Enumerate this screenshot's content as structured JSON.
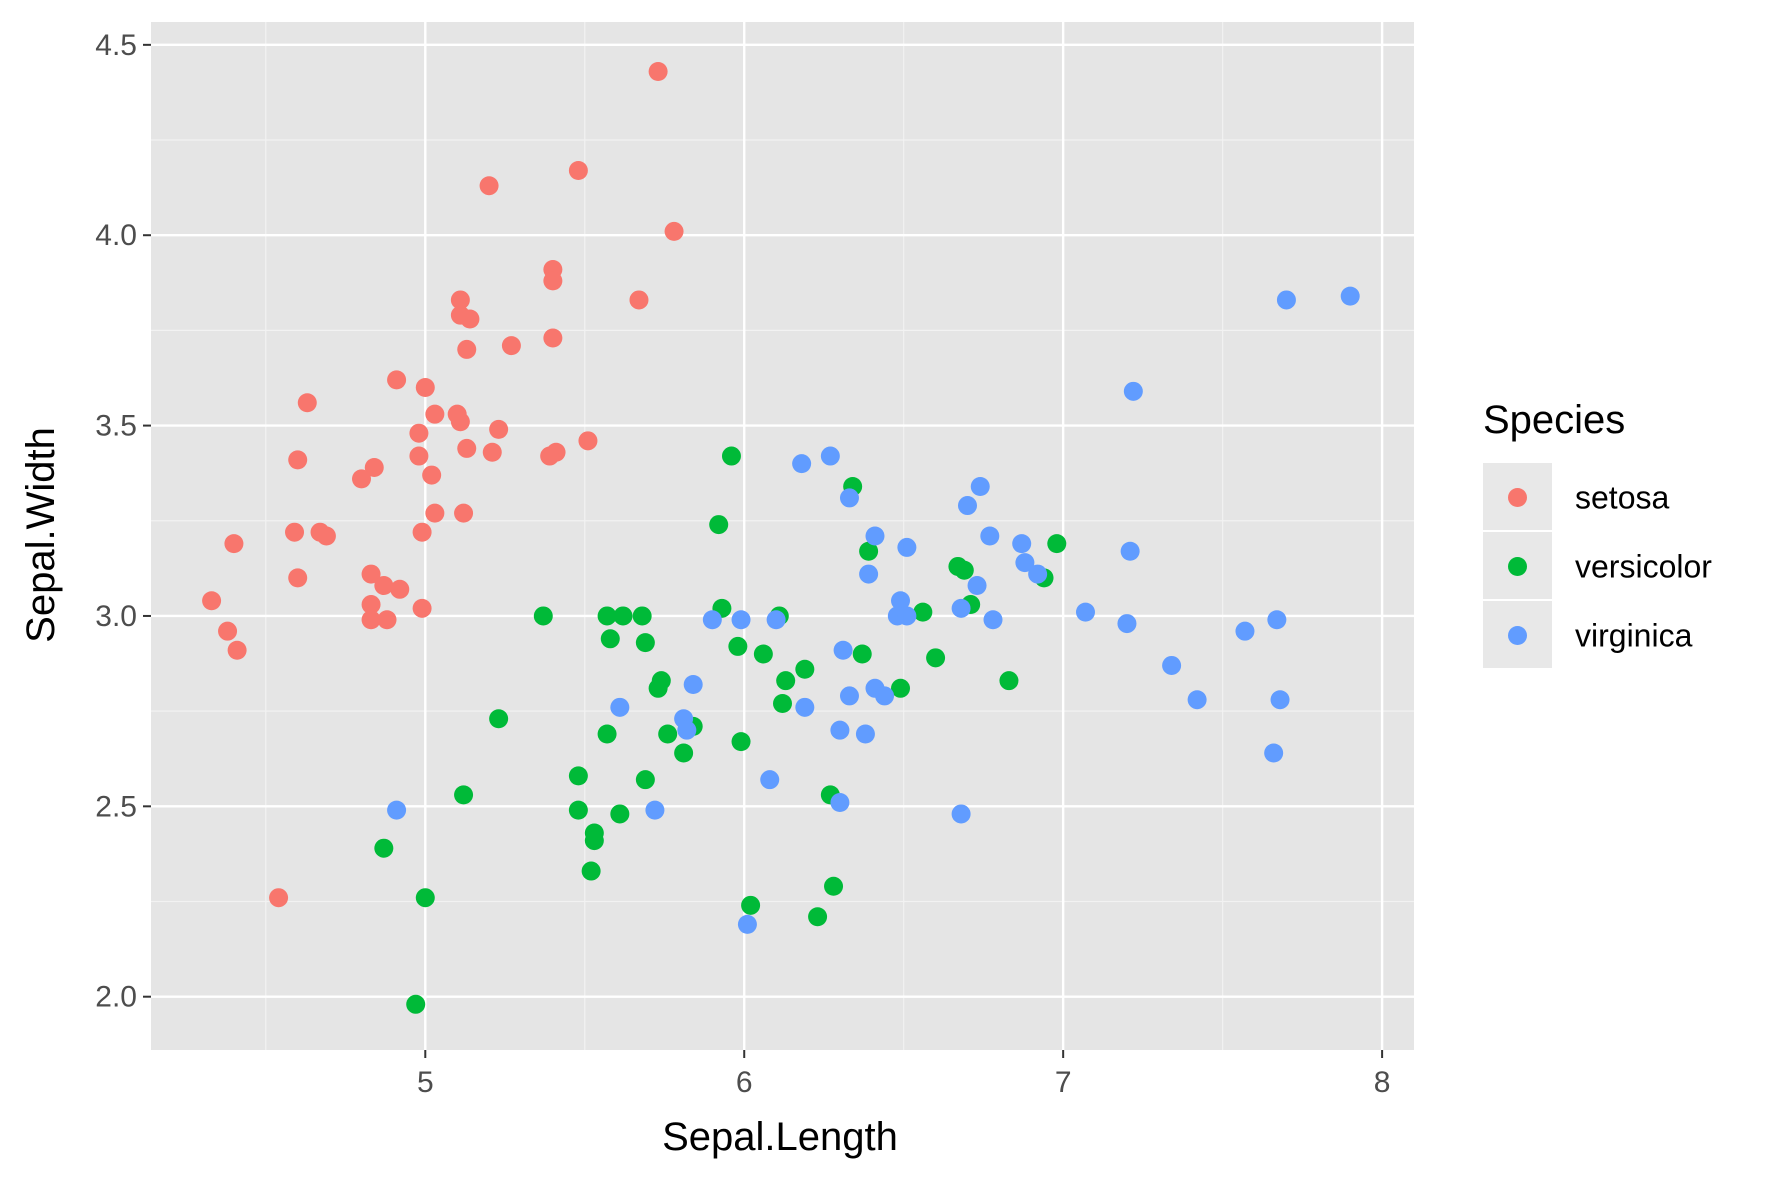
{
  "chart_data": {
    "type": "scatter",
    "title": "",
    "xlabel": "Sepal.Length",
    "ylabel": "Sepal.Width",
    "xlim": [
      4.14,
      8.1
    ],
    "ylim": [
      1.86,
      4.56
    ],
    "x_ticks": [
      5,
      6,
      7,
      8
    ],
    "x_tick_labels": [
      "5",
      "6",
      "7",
      "8"
    ],
    "y_ticks": [
      2.0,
      2.5,
      3.0,
      3.5,
      4.0,
      4.5
    ],
    "y_tick_labels": [
      "2.0",
      "2.5",
      "3.0",
      "3.5",
      "4.0",
      "4.5"
    ],
    "grid": true,
    "panel_background": "#e5e5e5",
    "legend": {
      "title": "Species",
      "position": "right",
      "entries": [
        "setosa",
        "versicolor",
        "virginica"
      ]
    },
    "series": [
      {
        "name": "setosa",
        "color": "#f8766d",
        "points": [
          [
            5.73,
            4.43
          ],
          [
            5.2,
            4.13
          ],
          [
            5.48,
            4.17
          ],
          [
            5.78,
            4.01
          ],
          [
            5.4,
            3.91
          ],
          [
            5.4,
            3.88
          ],
          [
            5.11,
            3.83
          ],
          [
            5.67,
            3.83
          ],
          [
            5.11,
            3.79
          ],
          [
            5.14,
            3.78
          ],
          [
            5.4,
            3.73
          ],
          [
            5.27,
            3.71
          ],
          [
            5.13,
            3.7
          ],
          [
            4.91,
            3.62
          ],
          [
            5.0,
            3.6
          ],
          [
            4.63,
            3.56
          ],
          [
            5.1,
            3.53
          ],
          [
            5.03,
            3.53
          ],
          [
            5.11,
            3.51
          ],
          [
            5.23,
            3.49
          ],
          [
            4.98,
            3.48
          ],
          [
            5.51,
            3.46
          ],
          [
            5.13,
            3.44
          ],
          [
            5.21,
            3.43
          ],
          [
            5.41,
            3.43
          ],
          [
            5.39,
            3.42
          ],
          [
            4.98,
            3.42
          ],
          [
            4.6,
            3.41
          ],
          [
            4.84,
            3.39
          ],
          [
            5.02,
            3.37
          ],
          [
            4.8,
            3.36
          ],
          [
            5.03,
            3.27
          ],
          [
            5.12,
            3.27
          ],
          [
            4.59,
            3.22
          ],
          [
            4.67,
            3.22
          ],
          [
            4.69,
            3.21
          ],
          [
            4.99,
            3.22
          ],
          [
            4.4,
            3.19
          ],
          [
            4.83,
            3.11
          ],
          [
            4.6,
            3.1
          ],
          [
            4.87,
            3.08
          ],
          [
            4.92,
            3.07
          ],
          [
            4.33,
            3.04
          ],
          [
            4.83,
            3.03
          ],
          [
            4.99,
            3.02
          ],
          [
            4.83,
            2.99
          ],
          [
            4.88,
            2.99
          ],
          [
            4.38,
            2.96
          ],
          [
            4.41,
            2.91
          ],
          [
            4.54,
            2.26
          ]
        ]
      },
      {
        "name": "versicolor",
        "color": "#00ba38",
        "points": [
          [
            5.96,
            3.42
          ],
          [
            6.34,
            3.34
          ],
          [
            5.92,
            3.24
          ],
          [
            6.98,
            3.19
          ],
          [
            6.39,
            3.17
          ],
          [
            6.67,
            3.13
          ],
          [
            6.69,
            3.12
          ],
          [
            6.94,
            3.1
          ],
          [
            6.71,
            3.03
          ],
          [
            5.93,
            3.02
          ],
          [
            6.56,
            3.01
          ],
          [
            5.37,
            3.0
          ],
          [
            5.57,
            3.0
          ],
          [
            5.62,
            3.0
          ],
          [
            5.68,
            3.0
          ],
          [
            6.11,
            3.0
          ],
          [
            5.58,
            2.94
          ],
          [
            5.69,
            2.93
          ],
          [
            5.98,
            2.92
          ],
          [
            6.06,
            2.9
          ],
          [
            6.37,
            2.9
          ],
          [
            6.6,
            2.89
          ],
          [
            6.19,
            2.86
          ],
          [
            6.83,
            2.83
          ],
          [
            5.74,
            2.83
          ],
          [
            6.13,
            2.83
          ],
          [
            5.73,
            2.81
          ],
          [
            6.49,
            2.81
          ],
          [
            6.12,
            2.77
          ],
          [
            5.23,
            2.73
          ],
          [
            5.84,
            2.71
          ],
          [
            5.57,
            2.69
          ],
          [
            5.76,
            2.69
          ],
          [
            5.99,
            2.67
          ],
          [
            5.81,
            2.64
          ],
          [
            5.48,
            2.58
          ],
          [
            5.69,
            2.57
          ],
          [
            5.12,
            2.53
          ],
          [
            6.27,
            2.53
          ],
          [
            5.48,
            2.49
          ],
          [
            5.61,
            2.48
          ],
          [
            5.53,
            2.43
          ],
          [
            5.53,
            2.41
          ],
          [
            4.87,
            2.39
          ],
          [
            5.52,
            2.33
          ],
          [
            6.28,
            2.29
          ],
          [
            5.0,
            2.26
          ],
          [
            6.02,
            2.24
          ],
          [
            6.23,
            2.21
          ],
          [
            4.97,
            1.98
          ]
        ]
      },
      {
        "name": "virginica",
        "color": "#619cff",
        "points": [
          [
            7.9,
            3.84
          ],
          [
            7.7,
            3.83
          ],
          [
            7.22,
            3.59
          ],
          [
            6.27,
            3.42
          ],
          [
            6.18,
            3.4
          ],
          [
            6.74,
            3.34
          ],
          [
            6.33,
            3.31
          ],
          [
            6.7,
            3.29
          ],
          [
            6.41,
            3.21
          ],
          [
            6.77,
            3.21
          ],
          [
            6.87,
            3.19
          ],
          [
            6.51,
            3.18
          ],
          [
            7.21,
            3.17
          ],
          [
            6.88,
            3.14
          ],
          [
            6.92,
            3.11
          ],
          [
            6.39,
            3.11
          ],
          [
            6.73,
            3.08
          ],
          [
            6.49,
            3.04
          ],
          [
            6.68,
            3.02
          ],
          [
            7.07,
            3.01
          ],
          [
            6.48,
            3.0
          ],
          [
            6.51,
            3.0
          ],
          [
            5.9,
            2.99
          ],
          [
            5.99,
            2.99
          ],
          [
            6.1,
            2.99
          ],
          [
            6.78,
            2.99
          ],
          [
            7.67,
            2.99
          ],
          [
            7.2,
            2.98
          ],
          [
            7.57,
            2.96
          ],
          [
            6.31,
            2.91
          ],
          [
            7.34,
            2.87
          ],
          [
            5.84,
            2.82
          ],
          [
            6.41,
            2.81
          ],
          [
            6.33,
            2.79
          ],
          [
            6.44,
            2.79
          ],
          [
            7.42,
            2.78
          ],
          [
            7.68,
            2.78
          ],
          [
            5.61,
            2.76
          ],
          [
            6.19,
            2.76
          ],
          [
            5.81,
            2.73
          ],
          [
            5.82,
            2.7
          ],
          [
            6.3,
            2.7
          ],
          [
            6.38,
            2.69
          ],
          [
            7.66,
            2.64
          ],
          [
            6.08,
            2.57
          ],
          [
            6.3,
            2.51
          ],
          [
            4.91,
            2.49
          ],
          [
            5.72,
            2.49
          ],
          [
            6.68,
            2.48
          ],
          [
            6.01,
            2.19
          ]
        ]
      }
    ]
  }
}
